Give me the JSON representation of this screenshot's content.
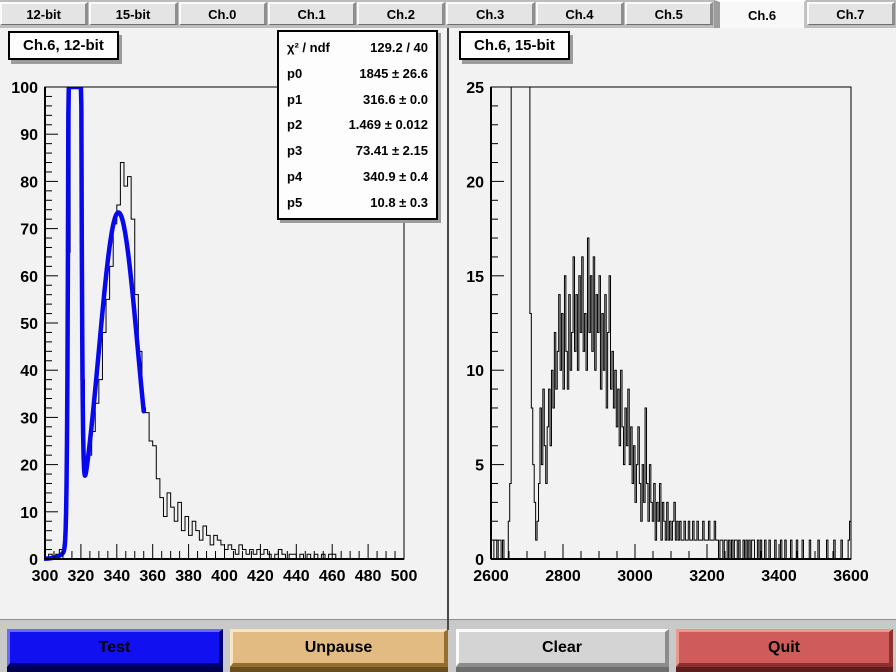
{
  "tabs": {
    "items": [
      {
        "label": "12-bit",
        "active": false
      },
      {
        "label": "15-bit",
        "active": false
      },
      {
        "label": "Ch.0",
        "active": false
      },
      {
        "label": "Ch.1",
        "active": false
      },
      {
        "label": "Ch.2",
        "active": false
      },
      {
        "label": "Ch.3",
        "active": false
      },
      {
        "label": "Ch.4",
        "active": false
      },
      {
        "label": "Ch.5",
        "active": false
      },
      {
        "label": "Ch.6",
        "active": true
      },
      {
        "label": "Ch.7",
        "active": false
      }
    ]
  },
  "chart_data": [
    {
      "type": "bar",
      "render": "step-histogram",
      "title": "Ch.6, 12-bit",
      "xlim": [
        300,
        500
      ],
      "ylim": [
        0,
        100
      ],
      "x_ticks": [
        300,
        320,
        340,
        360,
        380,
        400,
        420,
        440,
        460,
        480,
        500
      ],
      "y_ticks": [
        0,
        10,
        20,
        30,
        40,
        50,
        60,
        70,
        80,
        90,
        100
      ],
      "x_minor_step": 5,
      "y_minor_step": 2,
      "bin_start": 300,
      "bin_width": 2,
      "values": [
        0,
        1,
        0,
        1,
        2,
        3,
        65,
        100,
        100,
        100,
        38,
        20,
        22,
        27,
        33,
        38,
        48,
        55,
        62,
        71,
        75,
        84,
        79,
        81,
        72,
        56,
        44,
        32,
        31,
        25,
        24,
        17,
        13,
        9,
        14,
        11,
        8,
        12,
        6,
        9,
        5,
        8,
        6,
        4,
        7,
        5,
        3,
        5,
        4,
        3,
        2,
        3,
        2,
        1,
        3,
        2,
        1,
        2,
        1,
        2,
        1,
        2,
        1,
        0,
        1,
        2,
        1,
        0,
        1,
        1,
        0,
        1,
        0,
        1,
        0,
        1,
        0,
        1,
        0,
        1,
        1,
        0,
        0,
        0,
        0,
        0,
        0,
        0,
        0,
        0,
        0,
        0,
        0,
        0,
        0,
        0,
        0,
        0,
        0,
        0
      ],
      "fit": {
        "type": "double-gaussian",
        "color": "#0808ee",
        "range": [
          300,
          355
        ],
        "params": {
          "p0": 1845,
          "p1": 316.6,
          "p2": 1.469,
          "p3": 73.41,
          "p4": 340.9,
          "p5": 10.8
        }
      },
      "stats": {
        "rows": [
          [
            "χ² / ndf",
            "129.2 / 40"
          ],
          [
            "p0",
            "1845 ± 26.6"
          ],
          [
            "p1",
            "316.6 ± 0.0"
          ],
          [
            "p2",
            "1.469 ± 0.012"
          ],
          [
            "p3",
            "73.41 ± 2.15"
          ],
          [
            "p4",
            "340.9 ± 0.4"
          ],
          [
            "p5",
            "10.8 ± 0.3"
          ]
        ]
      }
    },
    {
      "type": "bar",
      "render": "step-histogram",
      "title": "Ch.6, 15-bit",
      "xlim": [
        2600,
        3600
      ],
      "ylim": [
        0,
        25
      ],
      "x_ticks": [
        2600,
        2800,
        3000,
        3200,
        3400,
        3600
      ],
      "y_ticks": [
        0,
        5,
        10,
        15,
        20,
        25
      ],
      "x_minor_step": 50,
      "y_minor_step": 1,
      "bin_start": 2600,
      "bin_width": 4,
      "values": [
        0,
        0,
        1,
        1,
        0,
        1,
        1,
        0,
        1,
        0,
        0,
        0,
        2,
        4,
        26,
        26,
        26,
        26,
        26,
        26,
        26,
        26,
        26,
        26,
        26,
        26,
        26,
        13,
        8,
        5,
        3,
        1,
        2,
        4,
        8,
        5,
        9,
        6,
        4,
        7,
        9,
        6,
        10,
        8,
        12,
        9,
        11,
        14,
        10,
        13,
        9,
        15,
        11,
        9,
        14,
        10,
        12,
        16,
        11,
        14,
        10,
        15,
        12,
        16,
        11,
        13,
        10,
        17,
        12,
        15,
        11,
        16,
        10,
        14,
        12,
        15,
        9,
        13,
        10,
        14,
        8,
        12,
        15,
        9,
        11,
        8,
        10,
        7,
        9,
        6,
        10,
        7,
        5,
        8,
        6,
        9,
        5,
        7,
        4,
        6,
        3,
        5,
        7,
        4,
        2,
        5,
        3,
        8,
        4,
        2,
        5,
        3,
        2,
        4,
        1,
        3,
        2,
        4,
        1,
        3,
        2,
        1,
        3,
        1,
        2,
        1,
        2,
        3,
        1,
        2,
        1,
        2,
        1,
        1,
        2,
        1,
        1,
        2,
        1,
        1,
        2,
        1,
        1,
        2,
        1,
        1,
        1,
        2,
        1,
        1,
        1,
        2,
        1,
        1,
        1,
        2,
        1,
        1,
        0,
        1,
        1,
        0,
        1,
        1,
        0,
        1,
        0,
        1,
        0,
        1,
        1,
        0,
        1,
        0,
        0,
        1,
        0,
        1,
        0,
        1,
        0,
        1,
        1,
        0,
        0,
        1,
        0,
        1,
        0,
        0,
        1,
        0,
        0,
        1,
        0,
        0,
        0,
        1,
        0,
        0,
        0,
        1,
        0,
        0,
        1,
        0,
        0,
        0,
        1,
        0,
        0,
        0,
        1,
        0,
        0,
        0,
        1,
        0,
        0,
        0,
        0,
        1,
        0,
        0,
        0,
        0,
        0,
        1,
        0,
        0,
        0,
        0,
        0,
        1,
        0,
        0,
        0,
        0,
        1,
        0,
        0,
        0,
        0,
        1,
        0,
        0,
        0,
        0,
        1,
        2
      ]
    }
  ],
  "buttons": [
    {
      "label": "Test",
      "fill": "#1010f0",
      "light": "#6a6aff",
      "dark": "#000070",
      "shadow": "#000050"
    },
    {
      "label": "Unpause",
      "fill": "#e2bb82",
      "light": "#f6e6c4",
      "dark": "#93702f",
      "shadow": "#6b4e1d"
    },
    {
      "label": "Clear",
      "fill": "#d4d4d4",
      "light": "#fbfbfb",
      "dark": "#8c8c8c",
      "shadow": "#6e6e6e"
    },
    {
      "label": "Quit",
      "fill": "#cf5c5a",
      "light": "#e69a8c",
      "dark": "#8f3030",
      "shadow": "#5f1d1d"
    }
  ]
}
